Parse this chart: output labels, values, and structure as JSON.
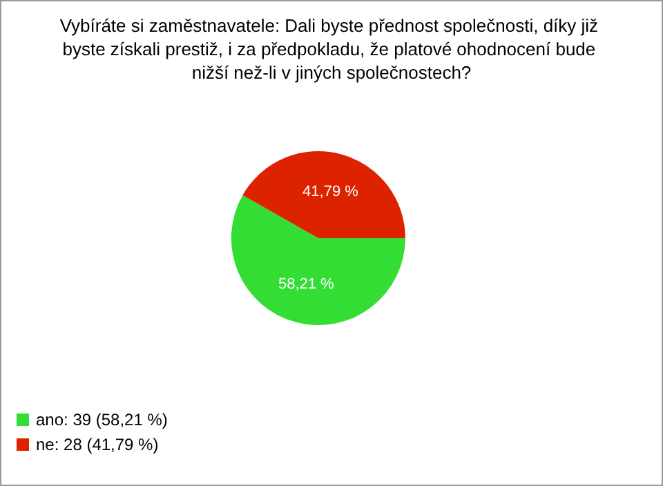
{
  "chart_data": {
    "type": "pie",
    "title": "Vybíráte si zaměstnavatele: Dali byste přednost společnosti, díky již byste získali prestiž, i za předpokladu, že platové ohodnocení bude nižší než-li v jiných společnostech?",
    "categories": [
      "ano: 39 (58,21 %)",
      "ne: 28 (41,79 %)"
    ],
    "values": [
      58.21,
      41.79
    ],
    "value_labels": [
      "58,21 %",
      "41,79 %"
    ],
    "colors": [
      "#33dd33",
      "#dd2200"
    ],
    "legend": "bottom left"
  }
}
